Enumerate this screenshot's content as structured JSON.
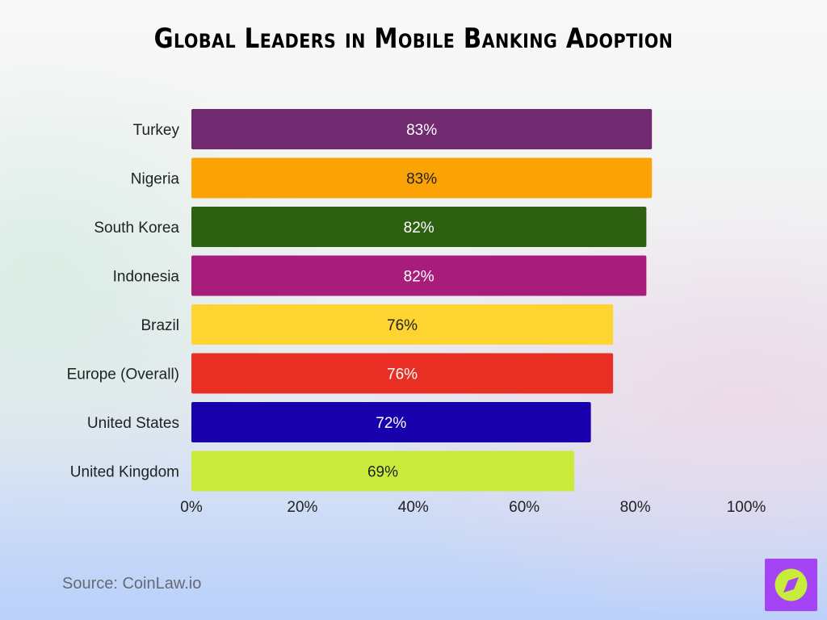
{
  "chart_data": {
    "type": "bar",
    "orientation": "horizontal",
    "title": "Global Leaders in Mobile Banking Adoption",
    "categories": [
      "Turkey",
      "Nigeria",
      "South Korea",
      "Indonesia",
      "Brazil",
      "Europe (Overall)",
      "United States",
      "United Kingdom"
    ],
    "values": [
      83,
      83,
      82,
      82,
      76,
      76,
      72,
      69
    ],
    "value_labels": [
      "83%",
      "83%",
      "82%",
      "82%",
      "76%",
      "76%",
      "72%",
      "69%"
    ],
    "colors": [
      "#71296f",
      "#fba304",
      "#2e6012",
      "#a81d7b",
      "#fed431",
      "#e92e23",
      "#1800ac",
      "#cbeb3c"
    ],
    "label_colors": [
      "#ffffff",
      "#222222",
      "#ffffff",
      "#ffffff",
      "#222222",
      "#ffffff",
      "#ffffff",
      "#222222"
    ],
    "xlim": [
      0,
      100
    ],
    "xticks": [
      0,
      20,
      40,
      60,
      80,
      100
    ],
    "xtick_labels": [
      "0%",
      "20%",
      "40%",
      "60%",
      "80%",
      "100%"
    ],
    "xlabel": "",
    "ylabel": "",
    "grid": false
  },
  "source": "Source: CoinLaw.io",
  "logo_icon": "compass-icon",
  "logo_colors": {
    "background": "#a444f4",
    "circle": "#c8ec3c",
    "needle": "#a444f4"
  }
}
